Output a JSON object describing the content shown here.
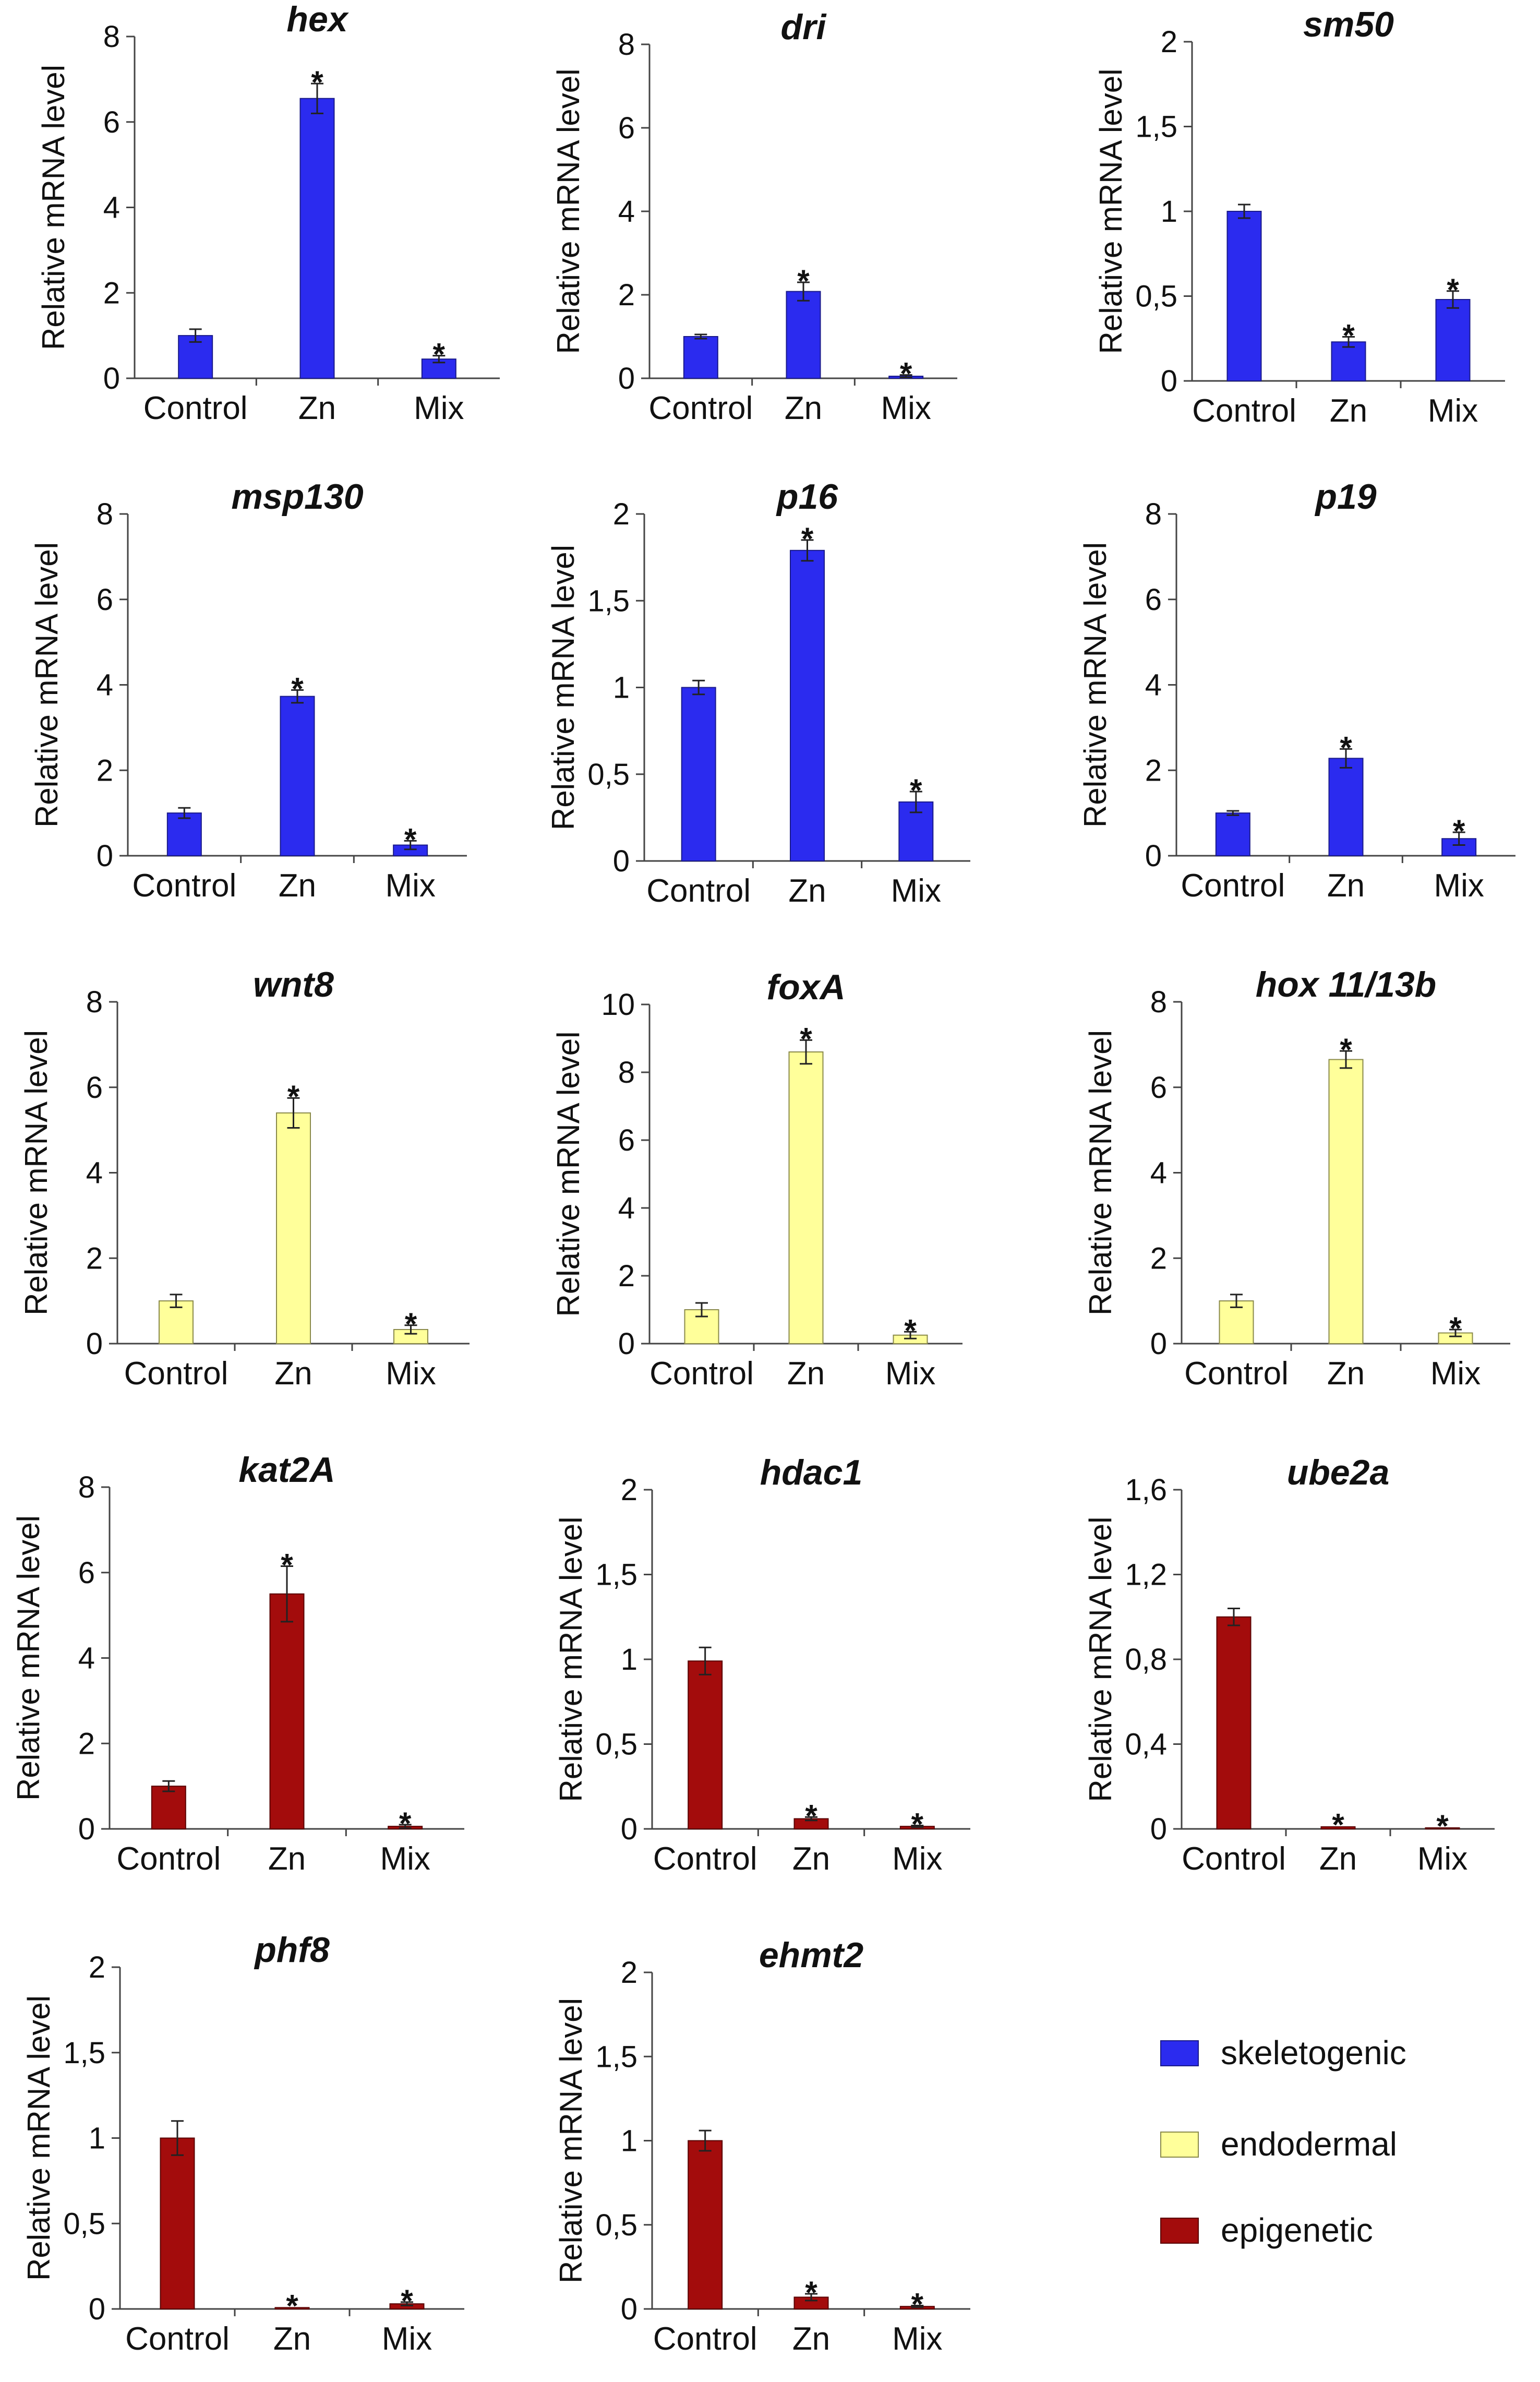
{
  "chart_data": [
    {
      "type": "bar",
      "title": "hex",
      "group": "skeletogenic",
      "ylabel": "Relative mRNA level",
      "ylim": [
        0,
        8
      ],
      "yticks": [
        "0",
        "2",
        "4",
        "6",
        "8"
      ],
      "categories": [
        "Control",
        "Zn",
        "Mix"
      ],
      "values": [
        1.0,
        6.55,
        0.45
      ],
      "errors": [
        0.15,
        0.35,
        0.08
      ],
      "significant": [
        false,
        true,
        true
      ]
    },
    {
      "type": "bar",
      "title": "dri",
      "group": "skeletogenic",
      "ylabel": "Relative mRNA level",
      "ylim": [
        0,
        8
      ],
      "yticks": [
        "0",
        "2",
        "4",
        "6",
        "8"
      ],
      "categories": [
        "Control",
        "Zn",
        "Mix"
      ],
      "values": [
        1.0,
        2.08,
        0.05
      ],
      "errors": [
        0.05,
        0.22,
        0.03
      ],
      "significant": [
        false,
        true,
        true
      ]
    },
    {
      "type": "bar",
      "title": "sm50",
      "group": "skeletogenic",
      "ylabel": "Relative mRNA level",
      "ylim": [
        0,
        2
      ],
      "yticks": [
        "0",
        "0,5",
        "1",
        "1,5",
        "2"
      ],
      "categories": [
        "Control",
        "Zn",
        "Mix"
      ],
      "values": [
        1.0,
        0.23,
        0.48
      ],
      "errors": [
        0.04,
        0.03,
        0.05
      ],
      "significant": [
        false,
        true,
        true
      ]
    },
    {
      "type": "bar",
      "title": "msp130",
      "group": "skeletogenic",
      "ylabel": "Relative mRNA level",
      "ylim": [
        0,
        8
      ],
      "yticks": [
        "0",
        "2",
        "4",
        "6",
        "8"
      ],
      "categories": [
        "Control",
        "Zn",
        "Mix"
      ],
      "values": [
        1.0,
        3.73,
        0.25
      ],
      "errors": [
        0.12,
        0.15,
        0.1
      ],
      "significant": [
        false,
        true,
        true
      ]
    },
    {
      "type": "bar",
      "title": "p16",
      "group": "skeletogenic",
      "ylabel": "Relative mRNA level",
      "ylim": [
        0,
        2
      ],
      "yticks": [
        "0",
        "0,5",
        "1",
        "1,5",
        "2"
      ],
      "categories": [
        "Control",
        "Zn",
        "Mix"
      ],
      "values": [
        1.0,
        1.79,
        0.34
      ],
      "errors": [
        0.04,
        0.06,
        0.06
      ],
      "significant": [
        false,
        true,
        true
      ]
    },
    {
      "type": "bar",
      "title": "p19",
      "group": "skeletogenic",
      "ylabel": "Relative mRNA level",
      "ylim": [
        0,
        8
      ],
      "yticks": [
        "0",
        "2",
        "4",
        "6",
        "8"
      ],
      "categories": [
        "Control",
        "Zn",
        "Mix"
      ],
      "values": [
        1.0,
        2.28,
        0.4
      ],
      "errors": [
        0.05,
        0.22,
        0.15
      ],
      "significant": [
        false,
        true,
        true
      ]
    },
    {
      "type": "bar",
      "title": "wnt8",
      "group": "endodermal",
      "ylabel": "Relative mRNA level",
      "ylim": [
        0,
        8
      ],
      "yticks": [
        "0",
        "2",
        "4",
        "6",
        "8"
      ],
      "categories": [
        "Control",
        "Zn",
        "Mix"
      ],
      "values": [
        1.0,
        5.4,
        0.33
      ],
      "errors": [
        0.15,
        0.35,
        0.1
      ],
      "significant": [
        false,
        true,
        true
      ]
    },
    {
      "type": "bar",
      "title": "foxA",
      "group": "endodermal",
      "ylabel": "Relative mRNA level",
      "ylim": [
        0,
        10
      ],
      "yticks": [
        "0",
        "2",
        "4",
        "6",
        "8",
        "10"
      ],
      "categories": [
        "Control",
        "Zn",
        "Mix"
      ],
      "values": [
        1.0,
        8.6,
        0.25
      ],
      "errors": [
        0.2,
        0.35,
        0.1
      ],
      "significant": [
        false,
        true,
        true
      ]
    },
    {
      "type": "bar",
      "title": "hox 11/13b",
      "group": "endodermal",
      "ylabel": "Relative mRNA level",
      "ylim": [
        0,
        8
      ],
      "yticks": [
        "0",
        "2",
        "4",
        "6",
        "8"
      ],
      "categories": [
        "Control",
        "Zn",
        "Mix"
      ],
      "values": [
        1.0,
        6.65,
        0.25
      ],
      "errors": [
        0.15,
        0.2,
        0.08
      ],
      "significant": [
        false,
        true,
        true
      ]
    },
    {
      "type": "bar",
      "title": "kat2A",
      "group": "epigenetic",
      "ylabel": "Relative mRNA level",
      "ylim": [
        0,
        8
      ],
      "yticks": [
        "0",
        "2",
        "4",
        "6",
        "8"
      ],
      "categories": [
        "Control",
        "Zn",
        "Mix"
      ],
      "values": [
        1.0,
        5.5,
        0.06
      ],
      "errors": [
        0.12,
        0.65,
        0.04
      ],
      "significant": [
        false,
        true,
        true
      ]
    },
    {
      "type": "bar",
      "title": "hdac1",
      "group": "epigenetic",
      "ylabel": "Relative mRNA level",
      "ylim": [
        0,
        2
      ],
      "yticks": [
        "0",
        "0,5",
        "1",
        "1,5",
        "2"
      ],
      "categories": [
        "Control",
        "Zn",
        "Mix"
      ],
      "values": [
        0.99,
        0.06,
        0.015
      ],
      "errors": [
        0.08,
        0.01,
        0.005
      ],
      "significant": [
        false,
        true,
        true
      ]
    },
    {
      "type": "bar",
      "title": "ube2a",
      "group": "epigenetic",
      "ylabel": "Relative mRNA level",
      "ylim": [
        0,
        1.6
      ],
      "yticks": [
        "0",
        "0,4",
        "0,8",
        "1,2",
        "1,6"
      ],
      "categories": [
        "Control",
        "Zn",
        "Mix"
      ],
      "values": [
        1.0,
        0.01,
        0.005
      ],
      "errors": [
        0.04,
        0.003,
        0.002
      ],
      "significant": [
        false,
        true,
        true
      ]
    },
    {
      "type": "bar",
      "title": "phf8",
      "group": "epigenetic",
      "ylabel": "Relative mRNA level",
      "ylim": [
        0,
        2
      ],
      "yticks": [
        "0",
        "0,5",
        "1",
        "1,5",
        "2"
      ],
      "categories": [
        "Control",
        "Zn",
        "Mix"
      ],
      "values": [
        1.0,
        0.008,
        0.03
      ],
      "errors": [
        0.1,
        0.003,
        0.01
      ],
      "significant": [
        false,
        true,
        true
      ]
    },
    {
      "type": "bar",
      "title": "ehmt2",
      "group": "epigenetic",
      "ylabel": "Relative mRNA level",
      "ylim": [
        0,
        2
      ],
      "yticks": [
        "0",
        "0,5",
        "1",
        "1,5",
        "2"
      ],
      "categories": [
        "Control",
        "Zn",
        "Mix"
      ],
      "values": [
        1.0,
        0.07,
        0.015
      ],
      "errors": [
        0.06,
        0.02,
        0.005
      ],
      "significant": [
        false,
        true,
        true
      ]
    }
  ],
  "legend": [
    {
      "key": "skeletogenic",
      "label": "skeletogenic",
      "color": "#2b2bef"
    },
    {
      "key": "endodermal",
      "label": "endodermal",
      "color": "#ffff9a"
    },
    {
      "key": "epigenetic",
      "label": "epigenetic",
      "color": "#a30c0c"
    }
  ],
  "significance_marker": "*"
}
